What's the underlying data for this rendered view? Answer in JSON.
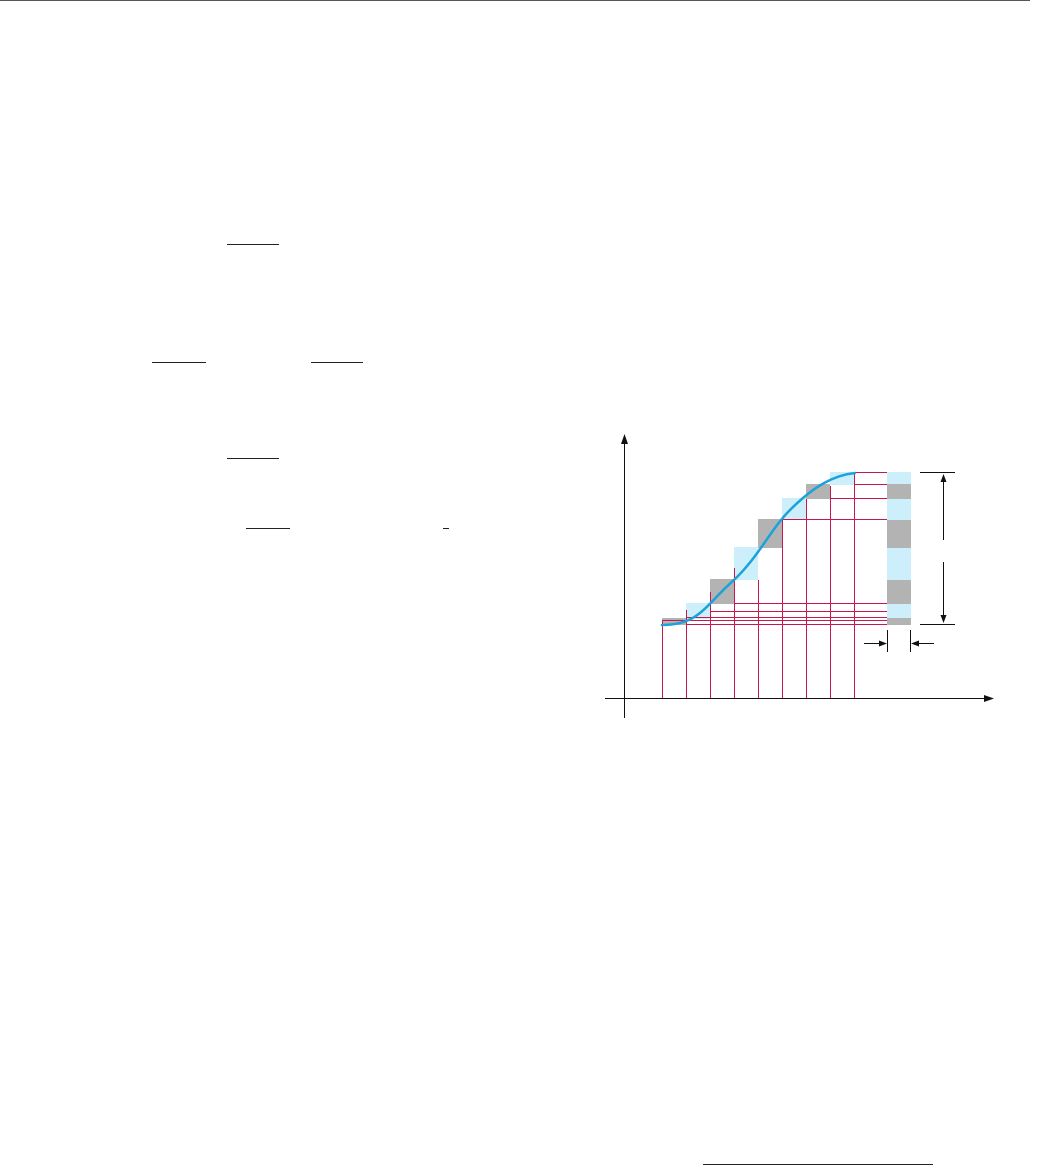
{
  "page": {
    "background": "#ffffff"
  },
  "text_fragments": {
    "fraction_bars": 8
  },
  "figure": {
    "description_colors": {
      "axis": "#111111",
      "curve": "#1aa3d8",
      "grid_lines": "#c8174e",
      "light_band": "#cdeefb",
      "dark_band": "#b3b3b3"
    },
    "curve": {
      "shape": "s-curve"
    },
    "vertical_sample_lines": 9,
    "horizontal_sample_lines": 9,
    "step_cells": 8,
    "right_strip_segments": 9,
    "dimension_marks": {
      "vertical_span": true,
      "horizontal_width": true
    }
  }
}
